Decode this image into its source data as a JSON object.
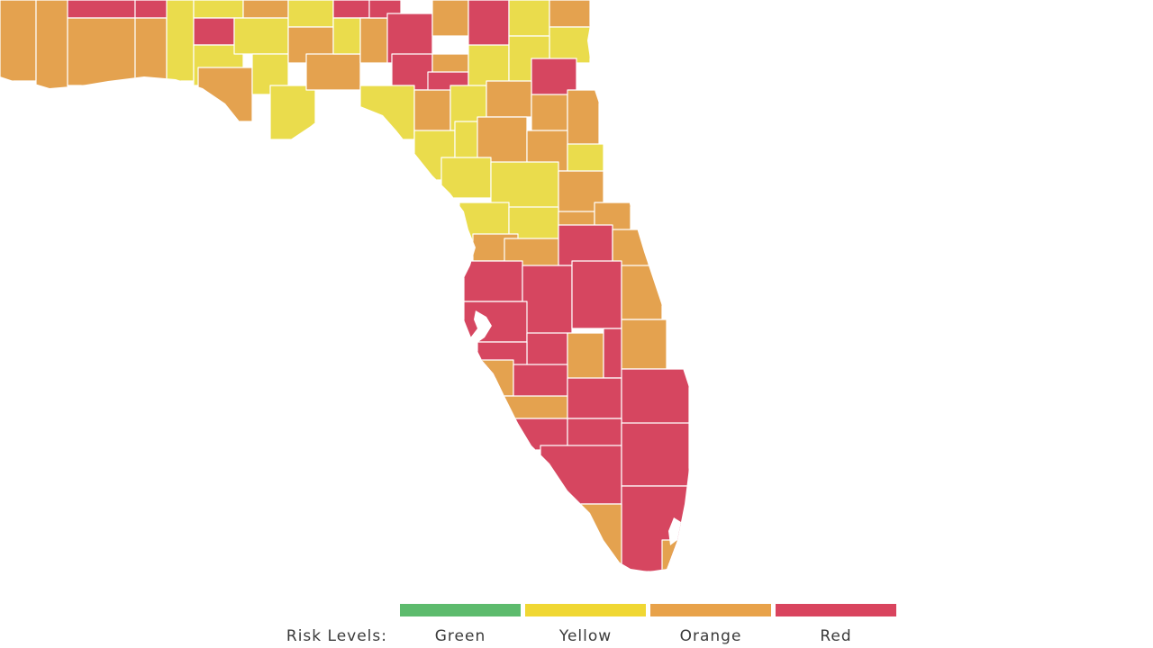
{
  "legend": {
    "title": "Risk Levels:",
    "items": [
      {
        "label": "Green",
        "color": "#5dbb6d"
      },
      {
        "label": "Yellow",
        "color": "#f0d733"
      },
      {
        "label": "Orange",
        "color": "#e8a24a"
      },
      {
        "label": "Red",
        "color": "#d9445e"
      }
    ]
  },
  "colors": {
    "yellow": "#eadc4c",
    "orange": "#e4a24f",
    "red": "#d64660",
    "background": "#ffffff",
    "border": "#ffffff"
  }
}
